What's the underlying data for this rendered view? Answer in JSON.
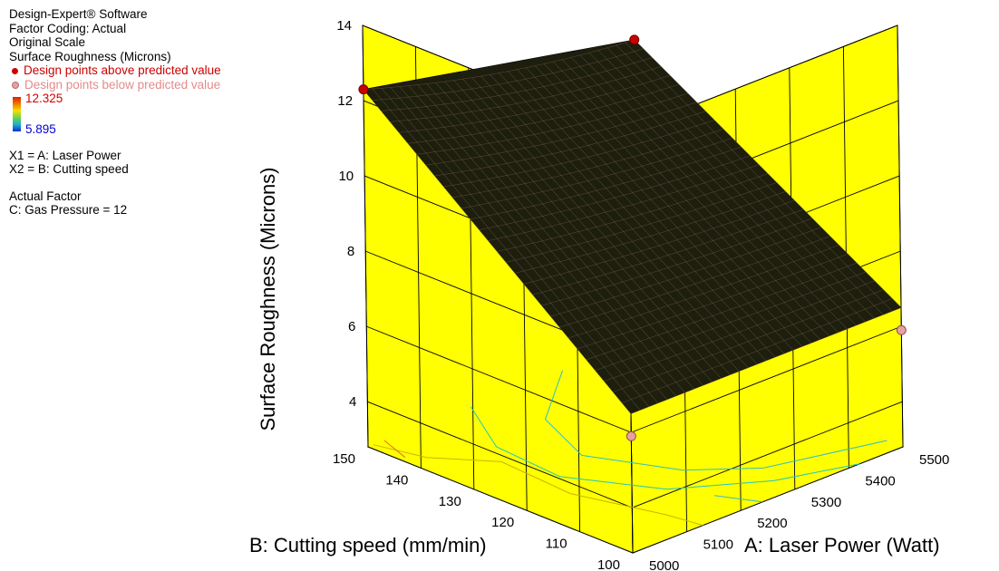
{
  "info": {
    "software": "Design-Expert® Software",
    "factor_coding": "Factor Coding: Actual",
    "scale": "Original Scale",
    "response": "Surface Roughness (Microns)",
    "legend_above": "Design points above predicted value",
    "legend_below": "Design points below predicted value",
    "colorbar_max": "12.325",
    "colorbar_min": "5.895",
    "x1": "X1 = A: Laser Power",
    "x2": "X2 = B: Cutting speed",
    "actual_factor_heading": "Actual Factor",
    "actual_factor": "C: Gas Pressure = 12"
  },
  "colors": {
    "wall": "#ffff00",
    "above_point": "#cc0000",
    "below_point": "#e8a0a0",
    "colorbar_high": "#e21b00",
    "colorbar_low": "#0a2cd8"
  },
  "chart_data": {
    "type": "surface3d",
    "title": "",
    "xlabel": "A: Laser Power (Watt)",
    "ylabel": "B: Cutting speed (mm/min)",
    "zlabel": "Surface Roughness (Microns)",
    "x_ticks": [
      "5000",
      "5100",
      "5200",
      "5300",
      "5400",
      "5500"
    ],
    "y_ticks": [
      "100",
      "110",
      "120",
      "130",
      "140",
      "150"
    ],
    "z_ticks": [
      "4",
      "6",
      "8",
      "10",
      "12",
      "14"
    ],
    "xlim": [
      5000,
      5500
    ],
    "ylim": [
      100,
      150
    ],
    "zlim": [
      4,
      14
    ],
    "surface_corners": [
      {
        "laser_power": 5000,
        "cutting_speed": 150,
        "roughness": 12.3
      },
      {
        "laser_power": 5500,
        "cutting_speed": 150,
        "roughness": 10.8
      },
      {
        "laser_power": 5000,
        "cutting_speed": 100,
        "roughness": 6.5
      },
      {
        "laser_power": 5500,
        "cutting_speed": 100,
        "roughness": 6.5
      }
    ],
    "design_points": [
      {
        "laser_power": 5000,
        "cutting_speed": 150,
        "roughness": 12.3,
        "position": "above"
      },
      {
        "laser_power": 5500,
        "cutting_speed": 150,
        "roughness": 10.8,
        "position": "above"
      },
      {
        "laser_power": 5000,
        "cutting_speed": 100,
        "roughness": 5.9,
        "position": "below"
      },
      {
        "laser_power": 5500,
        "cutting_speed": 100,
        "roughness": 5.9,
        "position": "below"
      }
    ],
    "grid": true,
    "legend": "top-left"
  }
}
